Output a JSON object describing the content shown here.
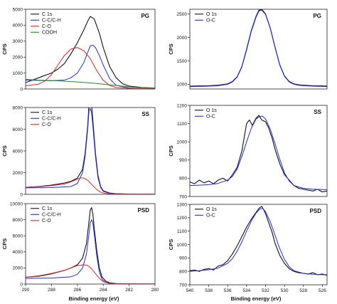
{
  "figure": {
    "xlabel_left": "Binding energy (eV)",
    "xlabel_right": "Binding energy (eV)"
  },
  "colors": {
    "black": "#111111",
    "blue": "#1f2fd6",
    "red": "#d8262a",
    "green": "#1f8f1f"
  },
  "chart_data": [
    {
      "type": "line",
      "title": "PG",
      "ylabel": "CPS",
      "xlim": [
        290,
        280
      ],
      "ylim": [
        0,
        5000
      ],
      "xticks": [],
      "yticks": [
        0,
        1000,
        2000,
        3000,
        4000,
        5000
      ],
      "legend_position": "top-left",
      "series": [
        {
          "name": "C 1s",
          "color": "black",
          "x": [
            290,
            289,
            288,
            287.5,
            287,
            286.5,
            286,
            285.5,
            285.2,
            285,
            284.7,
            284.3,
            284,
            283.5,
            283,
            282.5,
            282,
            281,
            280
          ],
          "y": [
            400,
            700,
            1000,
            1250,
            1600,
            2200,
            2900,
            3700,
            4250,
            4550,
            4400,
            3500,
            2600,
            1400,
            700,
            330,
            180,
            90,
            60
          ]
        },
        {
          "name": "C-C/C-H",
          "color": "blue",
          "x": [
            290,
            288,
            287,
            286.5,
            286,
            285.5,
            285.2,
            285,
            284.8,
            284.6,
            284.3,
            284,
            283.5,
            283,
            282,
            281,
            280
          ],
          "y": [
            560,
            520,
            560,
            700,
            1000,
            1650,
            2300,
            2700,
            2750,
            2600,
            2100,
            1500,
            650,
            220,
            60,
            30,
            20
          ]
        },
        {
          "name": "C-O",
          "color": "red",
          "x": [
            290,
            289,
            288.5,
            288,
            287.5,
            287,
            286.5,
            286,
            285.5,
            285,
            284.5,
            284,
            283.5,
            283,
            282,
            281,
            280
          ],
          "y": [
            200,
            300,
            500,
            900,
            1500,
            2100,
            2500,
            2600,
            2400,
            1900,
            1150,
            550,
            220,
            90,
            40,
            20,
            10
          ]
        },
        {
          "name": "COOH",
          "color": "green",
          "x": [
            290,
            289,
            288,
            287,
            286,
            285,
            284,
            283,
            282,
            281,
            280
          ],
          "y": [
            600,
            560,
            530,
            490,
            440,
            380,
            300,
            220,
            140,
            80,
            50
          ]
        }
      ]
    },
    {
      "type": "line",
      "title": "SS",
      "ylabel": "CPS",
      "xlim": [
        290,
        280
      ],
      "ylim": [
        0,
        8000
      ],
      "xticks": [],
      "yticks": [
        0,
        2000,
        4000,
        6000,
        8000
      ],
      "legend_position": "top-left",
      "series": [
        {
          "name": "C 1s",
          "color": "black",
          "x": [
            290,
            289,
            288,
            287,
            286.5,
            286,
            285.6,
            285.4,
            285.2,
            285.1,
            285,
            284.9,
            284.8,
            284.6,
            284.4,
            284.2,
            284,
            283.5,
            283,
            282,
            281,
            280
          ],
          "y": [
            650,
            720,
            850,
            1050,
            1200,
            1500,
            2300,
            3800,
            6300,
            8300,
            8700,
            8200,
            6800,
            3800,
            1700,
            700,
            330,
            120,
            60,
            30,
            20,
            15
          ]
        },
        {
          "name": "C-C/C-H",
          "color": "blue",
          "x": [
            290,
            288,
            286.5,
            286,
            285.6,
            285.4,
            285.2,
            285.1,
            285,
            284.9,
            284.8,
            284.6,
            284.4,
            284.2,
            284,
            283.5,
            283,
            282,
            280
          ],
          "y": [
            600,
            620,
            720,
            1000,
            2000,
            3500,
            6000,
            7700,
            7900,
            7500,
            6300,
            3500,
            1500,
            620,
            280,
            100,
            50,
            25,
            15
          ]
        },
        {
          "name": "C-O",
          "color": "red",
          "x": [
            290,
            289,
            288,
            287,
            286.5,
            286,
            285.7,
            285.5,
            285.2,
            285,
            284.8,
            284.5,
            284.2,
            284,
            283.5,
            283,
            282,
            281,
            280
          ],
          "y": [
            650,
            700,
            800,
            950,
            1150,
            1400,
            1520,
            1500,
            1300,
            1050,
            800,
            450,
            200,
            120,
            50,
            30,
            20,
            15,
            10
          ]
        }
      ]
    },
    {
      "type": "line",
      "title": "PSD",
      "ylabel": "CPS",
      "xlabel": "Binding energy (eV)",
      "xlim": [
        290,
        280
      ],
      "ylim": [
        0,
        10000
      ],
      "xticks": [
        290,
        288,
        286,
        284,
        282,
        280
      ],
      "yticks": [
        0,
        2000,
        4000,
        6000,
        8000,
        10000
      ],
      "legend_position": "top-left",
      "series": [
        {
          "name": "C 1s",
          "color": "black",
          "x": [
            290,
            289,
            288,
            287,
            286.5,
            286,
            285.6,
            285.3,
            285.1,
            285,
            284.9,
            284.8,
            284.7,
            284.5,
            284.3,
            284.1,
            283.8,
            283.5,
            283,
            282,
            281,
            280
          ],
          "y": [
            850,
            1000,
            1300,
            1700,
            2000,
            2400,
            3200,
            5000,
            7800,
            9200,
            9500,
            8700,
            7000,
            4200,
            2000,
            900,
            350,
            150,
            60,
            30,
            20,
            15
          ]
        },
        {
          "name": "C-C/C-H",
          "color": "blue",
          "x": [
            290,
            288,
            286.5,
            286,
            285.6,
            285.3,
            285.1,
            285,
            284.9,
            284.8,
            284.7,
            284.5,
            284.3,
            284.1,
            283.8,
            283.5,
            283,
            282,
            280
          ],
          "y": [
            700,
            750,
            900,
            1200,
            2000,
            3700,
            6200,
            7600,
            8000,
            7600,
            6300,
            3500,
            1500,
            600,
            200,
            80,
            40,
            20,
            15
          ]
        },
        {
          "name": "C-O",
          "color": "red",
          "x": [
            290,
            289,
            288,
            287,
            286.5,
            286,
            285.5,
            285.2,
            285,
            284.8,
            284.5,
            284.2,
            284,
            283.5,
            283,
            282,
            281,
            280
          ],
          "y": [
            850,
            950,
            1250,
            1700,
            2000,
            2300,
            2400,
            2300,
            2050,
            1700,
            1100,
            550,
            300,
            100,
            50,
            25,
            15,
            10
          ]
        }
      ]
    },
    {
      "type": "line",
      "title": "PG",
      "ylabel": "CPS",
      "xlim": [
        540,
        525.5
      ],
      "ylim": [
        900,
        2600
      ],
      "xticks": [],
      "yticks": [
        1000,
        1500,
        2000,
        2500
      ],
      "legend_position": "top-left",
      "series": [
        {
          "name": "O 1s",
          "color": "black",
          "x": [
            540,
            539,
            538,
            537,
            536,
            535.5,
            535,
            534.5,
            534,
            533.5,
            533,
            532.7,
            532.4,
            532,
            531.5,
            531,
            530.5,
            530,
            529.5,
            529,
            528.5,
            528,
            527,
            526,
            525.5
          ],
          "y": [
            960,
            965,
            970,
            980,
            1010,
            1060,
            1160,
            1380,
            1750,
            2150,
            2450,
            2580,
            2600,
            2500,
            2200,
            1800,
            1420,
            1180,
            1060,
            1010,
            990,
            980,
            970,
            965,
            960
          ]
        },
        {
          "name": "O-C",
          "color": "blue",
          "x": [
            540,
            539,
            538,
            537,
            536,
            535.5,
            535,
            534.5,
            534,
            533.5,
            533,
            532.7,
            532.4,
            532,
            531.5,
            531,
            530.5,
            530,
            529.5,
            529,
            528.5,
            528,
            527,
            526,
            525.5
          ],
          "y": [
            950,
            955,
            960,
            970,
            1000,
            1050,
            1150,
            1370,
            1730,
            2130,
            2430,
            2560,
            2580,
            2490,
            2190,
            1790,
            1410,
            1170,
            1050,
            1000,
            980,
            970,
            960,
            955,
            950
          ]
        }
      ]
    },
    {
      "type": "line",
      "title": "SS",
      "ylabel": "CPS",
      "xlim": [
        540,
        525.5
      ],
      "ylim": [
        700,
        1200
      ],
      "xticks": [],
      "yticks": [
        700,
        800,
        900,
        1000,
        1100,
        1200
      ],
      "legend_position": "top-left",
      "series": [
        {
          "name": "O 1s",
          "color": "black",
          "x": [
            540,
            539.5,
            539,
            538.5,
            538,
            537.5,
            537,
            536.5,
            536,
            535.5,
            535,
            534.5,
            534.2,
            534,
            533.7,
            533.4,
            533,
            532.7,
            532.4,
            532,
            531.7,
            531.3,
            531,
            530.5,
            530,
            529.5,
            529,
            528.5,
            528,
            527.5,
            527,
            526.5,
            526,
            525.5
          ],
          "y": [
            780,
            770,
            790,
            775,
            785,
            770,
            790,
            800,
            785,
            820,
            860,
            950,
            1040,
            1100,
            1120,
            1090,
            1130,
            1145,
            1120,
            1110,
            1080,
            1020,
            960,
            880,
            820,
            790,
            760,
            745,
            740,
            735,
            730,
            740,
            725,
            730
          ]
        },
        {
          "name": "O-C",
          "color": "blue",
          "x": [
            540,
            539,
            538,
            537,
            536,
            535.5,
            535,
            534.5,
            534,
            533.5,
            533,
            532.6,
            532.3,
            532,
            531.5,
            531,
            530.5,
            530,
            529.5,
            529,
            528,
            527,
            526,
            525.5
          ],
          "y": [
            760,
            762,
            765,
            772,
            790,
            810,
            850,
            920,
            1000,
            1075,
            1125,
            1140,
            1140,
            1125,
            1070,
            990,
            905,
            830,
            785,
            760,
            745,
            740,
            738,
            737
          ]
        }
      ]
    },
    {
      "type": "line",
      "title": "PSD",
      "ylabel": "CPS",
      "xlabel": "Binding energy (eV)",
      "xlim": [
        540,
        525.5
      ],
      "ylim": [
        700,
        1300
      ],
      "xticks": [
        540,
        538,
        536,
        534,
        532,
        530,
        528,
        526
      ],
      "yticks": [
        700,
        800,
        900,
        1000,
        1100,
        1200,
        1300
      ],
      "legend_position": "top-left",
      "series": [
        {
          "name": "O 1s",
          "color": "black",
          "x": [
            540,
            539.5,
            539,
            538.5,
            538,
            537.5,
            537,
            536.5,
            536,
            535.5,
            535,
            534.5,
            534,
            533.5,
            533,
            532.7,
            532.4,
            532.2,
            532,
            531.7,
            531.3,
            531,
            530.5,
            530,
            529.5,
            529,
            528.5,
            528,
            527.5,
            527,
            526.5,
            526,
            525.5
          ],
          "y": [
            805,
            810,
            800,
            815,
            820,
            810,
            840,
            850,
            880,
            930,
            990,
            1060,
            1130,
            1190,
            1240,
            1270,
            1285,
            1260,
            1230,
            1170,
            1090,
            1010,
            920,
            860,
            820,
            800,
            790,
            785,
            780,
            790,
            775,
            780,
            770
          ]
        },
        {
          "name": "O-C",
          "color": "blue",
          "x": [
            540,
            539,
            538,
            537,
            536,
            535.5,
            535,
            534.5,
            534,
            533.5,
            533,
            532.6,
            532.3,
            532,
            531.5,
            531,
            530.5,
            530,
            529.5,
            529,
            528,
            527,
            526,
            525.5
          ],
          "y": [
            800,
            805,
            812,
            825,
            860,
            895,
            950,
            1020,
            1100,
            1175,
            1235,
            1265,
            1270,
            1245,
            1170,
            1070,
            970,
            890,
            835,
            805,
            785,
            778,
            775,
            775
          ]
        }
      ]
    }
  ]
}
